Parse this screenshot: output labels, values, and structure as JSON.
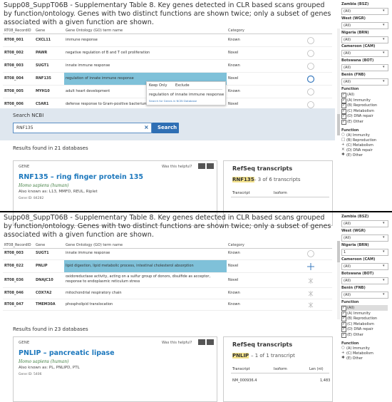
{
  "panels": [
    {
      "title": "Supp08_SuppT06B - Supplementary Table 8. Key genes detected in CLR based scans grouped by function/ontology. Genes with two distinct functions are shown twice; only a subset of genes associated with a given function are shown.",
      "columns": [
        "RT08_RecordID",
        "Gene",
        "Gene Ontology (GO) term name",
        "Category"
      ],
      "rows": [
        [
          "RT08_001",
          "CXCL11",
          "immune response",
          "Known"
        ],
        [
          "RT08_002",
          "PAWR",
          "negative regulation of B and T cell proliferation",
          "Novel"
        ],
        [
          "RT08_003",
          "SUGT1",
          "innate immune response",
          "Known"
        ],
        [
          "RT08_004",
          "RNF135",
          "regulation of innate immune response",
          "Novel"
        ],
        [
          "RT08_005",
          "MYH10",
          "adult heart development",
          "Known"
        ],
        [
          "RT08_006",
          "C5AR1",
          "defense response to Gram-positive bacterium, ...",
          "Novel"
        ]
      ],
      "tooltip": {
        "actions": [
          "Keep Only",
          "Exclude"
        ],
        "text": "regulation of innate immune response",
        "link": "Search for Genes in NCBI Database"
      },
      "search": {
        "label": "Search NCBI",
        "query": "RNF135",
        "button": "Search"
      },
      "results": {
        "summary": "Results found in 21 databases",
        "gene_card": {
          "section": "GENE",
          "feedback": "Was this helpful?",
          "heading": "RNF135 – ring finger protein 135",
          "organism": "Homo sapiens (human)",
          "aliases": "Also known as: L13, MMFD, REUL, Riplet",
          "gene_id": "Gene ID: 84282"
        },
        "refseq": {
          "title": "RefSeq transcripts",
          "symbol": "RNF135",
          "count": "– 3 of 6 transcripts",
          "columns": [
            "Transcript",
            "Isoform"
          ],
          "rows": []
        }
      },
      "filters": [
        {
          "label": "Zambia (BSZ)",
          "value": "(All)"
        },
        {
          "label": "West (WGR)",
          "value": "(All)"
        },
        {
          "label": "Nigeria (BRN)",
          "value": "(All)"
        },
        {
          "label": "Cameroon (CAM)",
          "value": "(All)"
        },
        {
          "label": "Botswana (BOT)",
          "value": "(All)"
        },
        {
          "label": "Benin (FNB)",
          "value": "(All)"
        }
      ],
      "function_list": {
        "label": "Function",
        "options": [
          "(All)",
          "(A) Immunity",
          "(B) Reproduction",
          "(C) Metabolism",
          "(D) DNA repair",
          "(E) Other"
        ]
      },
      "shape_legend": {
        "label": "Function",
        "items": [
          "(A) Immunity",
          "(B) Reproduction",
          "(C) Metabolism",
          "(D) DNA repair",
          "(E) Other"
        ]
      }
    },
    {
      "title": "Supp08_SuppT06B - Supplementary Table 8. Key genes detected in CLR based scans grouped by function/ontology. Genes with two distinct functions are shown twice; only a subset of genes associated with a given function are shown.",
      "columns": [
        "RT08_RecordID",
        "Gene",
        "Gene Ontology (GO) term name",
        "Category"
      ],
      "rows": [
        [
          "RT08_003",
          "SUGT1",
          "innate immune response",
          "Known"
        ],
        [
          "RT08_022",
          "PNLIP",
          "lipid digestion, lipid metabolic process, intestinal cholesterol absorption",
          "Novel"
        ],
        [
          "RT08_036",
          "DNAJC10",
          "oxidoreductase activity, acting on a sulfur group of donors, disulfide as acceptor, response to endoplasmic reticulum stress",
          "Novel"
        ],
        [
          "RT08_046",
          "COX7A2",
          "mitochondrial respiratory chain",
          "Known"
        ],
        [
          "RT08_047",
          "TMEM30A",
          "phospholipid translocation",
          "Known"
        ]
      ],
      "results": {
        "summary": "Results found in 23 databases",
        "gene_card": {
          "section": "GENE",
          "feedback": "Was this helpful?",
          "heading": "PNLIP – pancreatic lipase",
          "organism": "Homo sapiens (human)",
          "aliases": "Also known as: PL, PNLIPD, PTL",
          "gene_id": "Gene ID: 5406"
        },
        "refseq": {
          "title": "RefSeq transcripts",
          "symbol": "PNLIP",
          "count": "– 1 of 1 transcript",
          "columns": [
            "Transcript",
            "Isoform",
            "Len (nt)"
          ],
          "rows": [
            {
              "transcript": "NM_000936.4",
              "length": "1,483"
            }
          ]
        }
      },
      "filters": [
        {
          "label": "Zambia (BSZ)",
          "value": "(All)"
        },
        {
          "label": "West (WGR)",
          "value": "(All)"
        },
        {
          "label": "Nigeria (BRN)",
          "value": "1"
        },
        {
          "label": "Cameroon (CAM)",
          "value": "(All)"
        },
        {
          "label": "Botswana (BOT)",
          "value": "(All)"
        },
        {
          "label": "Benin (FNB)",
          "value": "(All)"
        }
      ],
      "function_list": {
        "label": "Function",
        "options": [
          "(All)",
          "(A) Immunity",
          "(B) Reproduction",
          "(C) Metabolism",
          "(D) DNA repair",
          "(E) Other"
        ]
      },
      "shape_legend": {
        "label": "Function",
        "items": [
          "(A) Immunity",
          "(C) Metabolism",
          "(E) Other"
        ]
      }
    }
  ]
}
